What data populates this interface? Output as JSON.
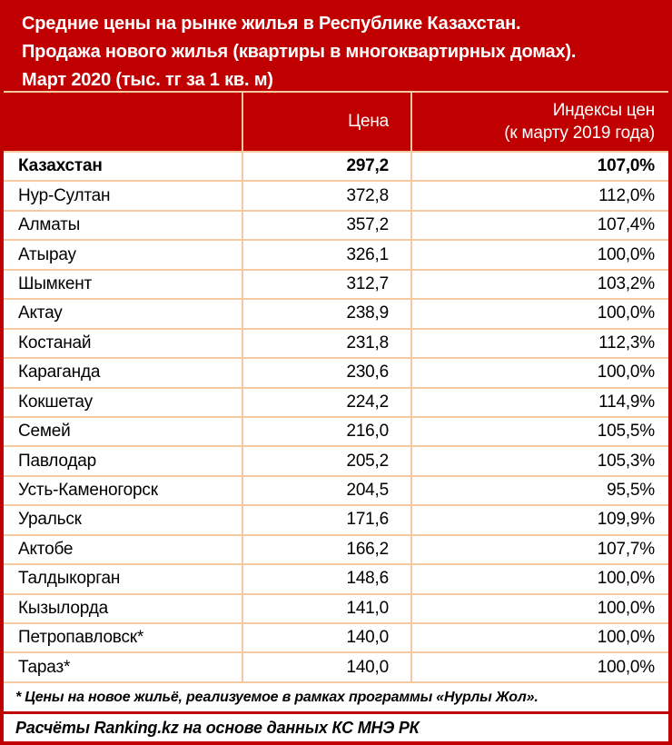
{
  "colors": {
    "accent_red": "#C00000",
    "border_peach": "#F6C9A3",
    "text": "#000000",
    "background": "#FFFFFF"
  },
  "title": {
    "lines": [
      "Средние цены на рынке жилья в Республике Казахстан.",
      "Продажа нового жилья (квартиры в многоквартирных домах).",
      "Март 2020 (тыс. тг за 1 кв. м)"
    ]
  },
  "table": {
    "header": {
      "name": "",
      "price": "Цена",
      "index_line1": "Индексы цен",
      "index_line2": "(к марту 2019 года)"
    },
    "rows": [
      {
        "name": "Казахстан",
        "price": "297,2",
        "index": "107,0%",
        "bold": true
      },
      {
        "name": "Нур-Султан",
        "price": "372,8",
        "index": "112,0%",
        "bold": false
      },
      {
        "name": "Алматы",
        "price": "357,2",
        "index": "107,4%",
        "bold": false
      },
      {
        "name": "Атырау",
        "price": "326,1",
        "index": "100,0%",
        "bold": false
      },
      {
        "name": "Шымкент",
        "price": "312,7",
        "index": "103,2%",
        "bold": false
      },
      {
        "name": "Актау",
        "price": "238,9",
        "index": "100,0%",
        "bold": false
      },
      {
        "name": "Костанай",
        "price": "231,8",
        "index": "112,3%",
        "bold": false
      },
      {
        "name": "Караганда",
        "price": "230,6",
        "index": "100,0%",
        "bold": false
      },
      {
        "name": "Кокшетау",
        "price": "224,2",
        "index": "114,9%",
        "bold": false
      },
      {
        "name": "Семей",
        "price": "216,0",
        "index": "105,5%",
        "bold": false
      },
      {
        "name": "Павлодар",
        "price": "205,2",
        "index": "105,3%",
        "bold": false
      },
      {
        "name": "Усть-Каменогорск",
        "price": "204,5",
        "index": "95,5%",
        "bold": false
      },
      {
        "name": "Уральск",
        "price": "171,6",
        "index": "109,9%",
        "bold": false
      },
      {
        "name": "Актобе",
        "price": "166,2",
        "index": "107,7%",
        "bold": false
      },
      {
        "name": "Талдыкорган",
        "price": "148,6",
        "index": "100,0%",
        "bold": false
      },
      {
        "name": "Кызылорда",
        "price": "141,0",
        "index": "100,0%",
        "bold": false
      },
      {
        "name": "Петропавловск*",
        "price": "140,0",
        "index": "100,0%",
        "bold": false
      },
      {
        "name": "Тараз*",
        "price": "140,0",
        "index": "100,0%",
        "bold": false
      }
    ]
  },
  "footnote": "* Цены на новое жильё, реализуемое в рамках программы «Нурлы Жол».",
  "source": "Расчёты Ranking.kz на основе данных КС МНЭ РК",
  "chart_data": {
    "type": "table",
    "title": "Средние цены на рынке жилья в Республике Казахстан. Продажа нового жилья (квартиры в многоквартирных домах). Март 2020 (тыс. тг за 1 кв. м)",
    "columns": [
      "",
      "Цена",
      "Индексы цен (к марту 2019 года)"
    ],
    "rows": [
      [
        "Казахстан",
        297.2,
        107.0
      ],
      [
        "Нур-Султан",
        372.8,
        112.0
      ],
      [
        "Алматы",
        357.2,
        107.4
      ],
      [
        "Атырау",
        326.1,
        100.0
      ],
      [
        "Шымкент",
        312.7,
        103.2
      ],
      [
        "Актау",
        238.9,
        100.0
      ],
      [
        "Костанай",
        231.8,
        112.3
      ],
      [
        "Караганда",
        230.6,
        100.0
      ],
      [
        "Кокшетау",
        224.2,
        114.9
      ],
      [
        "Семей",
        216.0,
        105.5
      ],
      [
        "Павлодар",
        205.2,
        105.3
      ],
      [
        "Усть-Каменогорск",
        204.5,
        95.5
      ],
      [
        "Уральск",
        171.6,
        109.9
      ],
      [
        "Актобе",
        166.2,
        107.7
      ],
      [
        "Талдыкорган",
        148.6,
        100.0
      ],
      [
        "Кызылорда",
        141.0,
        100.0
      ],
      [
        "Петропавловск*",
        140.0,
        100.0
      ],
      [
        "Тараз*",
        140.0,
        100.0
      ]
    ],
    "footnote": "* Цены на новое жильё, реализуемое в рамках программы «Нурлы Жол».",
    "source": "Расчёты Ranking.kz на основе данных КС МНЭ РК",
    "units": "тыс. тг за 1 кв. м"
  }
}
